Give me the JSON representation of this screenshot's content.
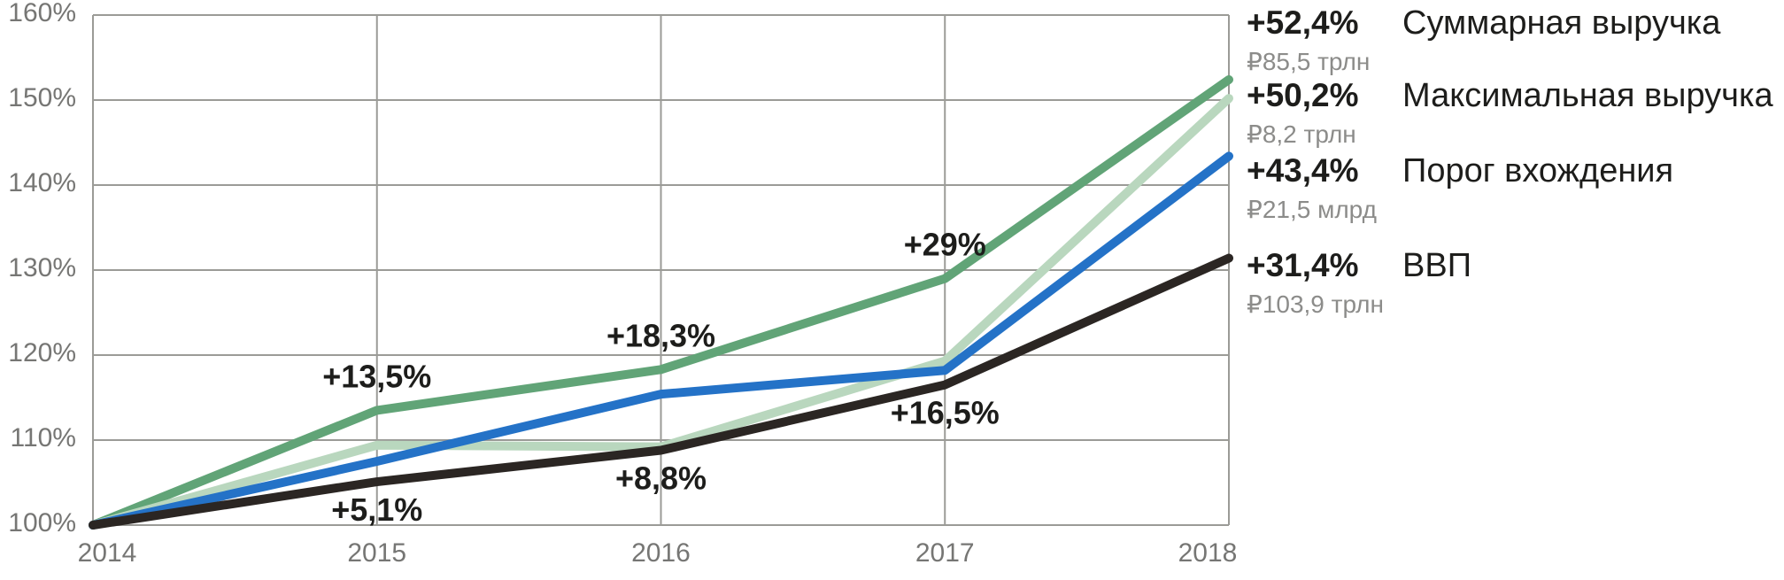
{
  "chart_data": {
    "type": "line",
    "x": [
      2014,
      2015,
      2016,
      2017,
      2018
    ],
    "x_labels": [
      "2014",
      "2015",
      "2016",
      "2017",
      "2018"
    ],
    "ylim": [
      100,
      160
    ],
    "y_tick_step": 10,
    "y_tick_labels": [
      "100%",
      "110%",
      "120%",
      "130%",
      "140%",
      "150%",
      "160%"
    ],
    "grid": true,
    "legend_position": "right",
    "series": [
      {
        "name": "Суммарная выручка",
        "change": "+52,4%",
        "amount": "₽85,5 трлн",
        "color": "#61a477",
        "values": [
          100,
          113.5,
          118.3,
          129,
          152.4
        ]
      },
      {
        "name": "Максимальная выручка",
        "change": "+50,2%",
        "amount": "₽8,2 трлн",
        "color": "#b9d7be",
        "values": [
          100,
          109.4,
          109.2,
          119.3,
          150.2
        ]
      },
      {
        "name": "Порог вхождения",
        "change": "+43,4%",
        "amount": "₽21,5 млрд",
        "color": "#2472c7",
        "values": [
          100,
          107.5,
          115.4,
          118.2,
          143.4
        ]
      },
      {
        "name": "ВВП",
        "change": "+31,4%",
        "amount": "₽103,9 трлн",
        "color": "#2b2623",
        "values": [
          100,
          105.1,
          108.8,
          116.5,
          131.4
        ]
      }
    ],
    "annotations": [
      {
        "text": "+13,5%",
        "x": 2015,
        "series": 0,
        "position": "above"
      },
      {
        "text": "+18,3%",
        "x": 2016,
        "series": 0,
        "position": "above"
      },
      {
        "text": "+29%",
        "x": 2017,
        "series": 0,
        "position": "above"
      },
      {
        "text": "+5,1%",
        "x": 2015,
        "series": 3,
        "position": "below"
      },
      {
        "text": "+8,8%",
        "x": 2016,
        "series": 3,
        "position": "below"
      },
      {
        "text": "+16,5%",
        "x": 2017,
        "series": 3,
        "position": "below"
      }
    ]
  },
  "colors": {
    "background": "#ffffff",
    "grid": "#9b9b97",
    "tick_text": "#767674",
    "annotation_text": "#1d1d1b",
    "legend_primary": "#1d1d1b",
    "legend_secondary": "#8c8c8a"
  }
}
